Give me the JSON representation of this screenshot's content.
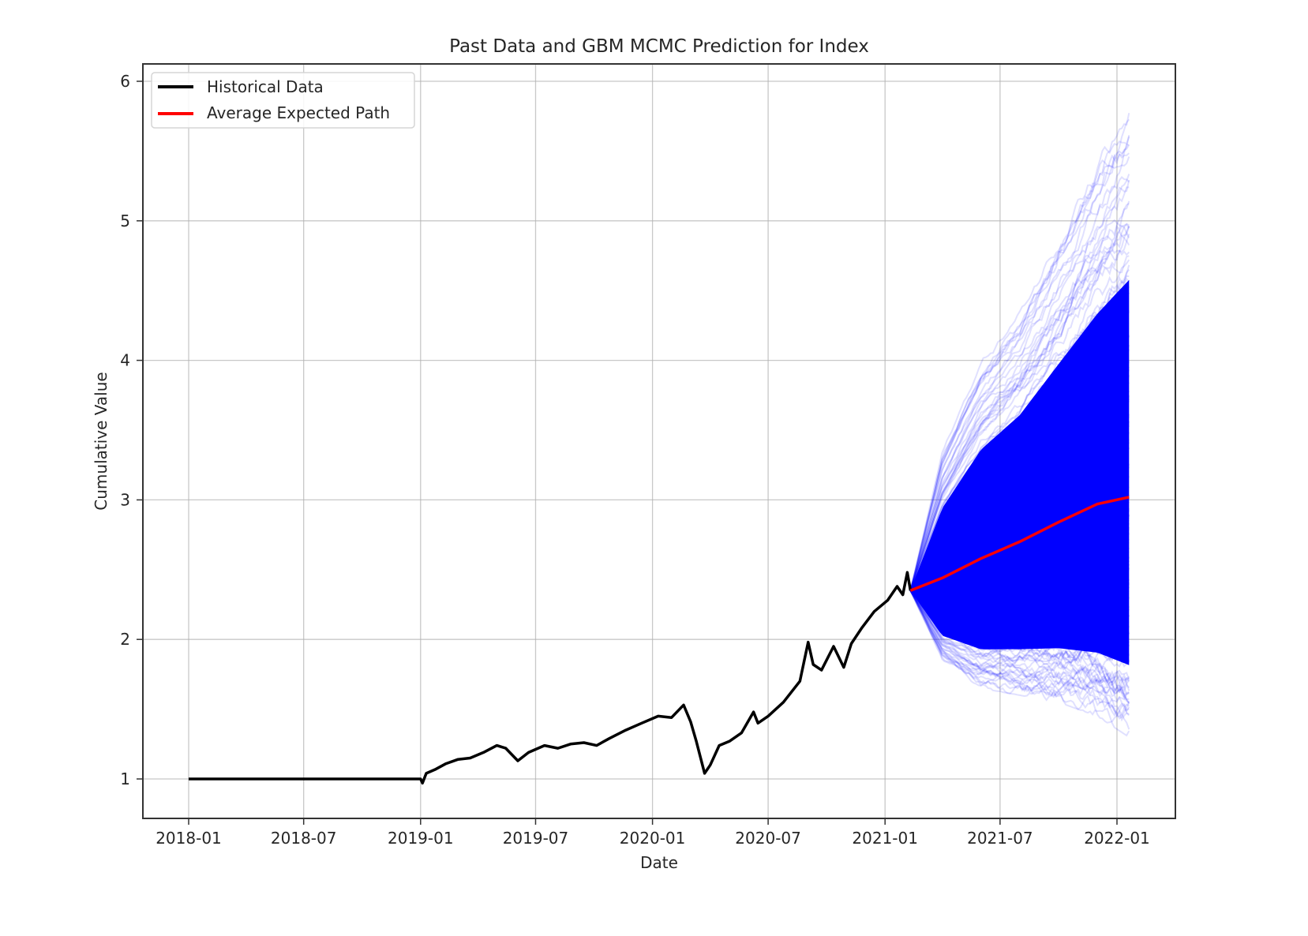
{
  "chart_data": {
    "type": "line",
    "title": "Past Data and GBM MCMC Prediction for Index",
    "xlabel": "Date",
    "ylabel": "Cumulative Value",
    "xlim": [
      "2017-11-05",
      "2022-02-26"
    ],
    "ylim": [
      0.7,
      6.13
    ],
    "grid": true,
    "x_ticks": [
      "2018-01",
      "2018-07",
      "2019-01",
      "2019-07",
      "2020-01",
      "2020-07",
      "2021-01",
      "2021-07",
      "2022-01"
    ],
    "y_ticks": [
      "1",
      "2",
      "3",
      "4",
      "5",
      "6"
    ],
    "legend": {
      "position": "top-left",
      "entries": [
        {
          "label": "Historical Data",
          "color": "#000000"
        },
        {
          "label": "Average Expected Path",
          "color": "#ff0000"
        }
      ]
    },
    "series": [
      {
        "name": "Historical Data",
        "color": "#000000",
        "points": [
          [
            "2018-01-01",
            1.0
          ],
          [
            "2018-07-01",
            1.0
          ],
          [
            "2019-01-01",
            1.0
          ],
          [
            "2019-01-04",
            0.97
          ],
          [
            "2019-01-10",
            1.04
          ],
          [
            "2019-01-25",
            1.07
          ],
          [
            "2019-02-10",
            1.11
          ],
          [
            "2019-03-01",
            1.14
          ],
          [
            "2019-03-20",
            1.15
          ],
          [
            "2019-04-10",
            1.19
          ],
          [
            "2019-05-01",
            1.24
          ],
          [
            "2019-05-15",
            1.22
          ],
          [
            "2019-06-03",
            1.13
          ],
          [
            "2019-06-20",
            1.19
          ],
          [
            "2019-07-15",
            1.24
          ],
          [
            "2019-08-05",
            1.22
          ],
          [
            "2019-08-25",
            1.25
          ],
          [
            "2019-09-15",
            1.26
          ],
          [
            "2019-10-05",
            1.24
          ],
          [
            "2019-10-25",
            1.29
          ],
          [
            "2019-11-20",
            1.35
          ],
          [
            "2019-12-15",
            1.4
          ],
          [
            "2020-01-10",
            1.45
          ],
          [
            "2020-01-31",
            1.44
          ],
          [
            "2020-02-19",
            1.53
          ],
          [
            "2020-03-01",
            1.41
          ],
          [
            "2020-03-10",
            1.27
          ],
          [
            "2020-03-23",
            1.04
          ],
          [
            "2020-04-01",
            1.1
          ],
          [
            "2020-04-15",
            1.24
          ],
          [
            "2020-05-01",
            1.27
          ],
          [
            "2020-05-20",
            1.33
          ],
          [
            "2020-06-08",
            1.48
          ],
          [
            "2020-06-15",
            1.4
          ],
          [
            "2020-07-01",
            1.45
          ],
          [
            "2020-07-25",
            1.55
          ],
          [
            "2020-08-20",
            1.7
          ],
          [
            "2020-09-02",
            1.98
          ],
          [
            "2020-09-10",
            1.82
          ],
          [
            "2020-09-23",
            1.78
          ],
          [
            "2020-10-12",
            1.95
          ],
          [
            "2020-10-28",
            1.8
          ],
          [
            "2020-11-09",
            1.97
          ],
          [
            "2020-11-25",
            2.08
          ],
          [
            "2020-12-15",
            2.2
          ],
          [
            "2021-01-05",
            2.28
          ],
          [
            "2021-01-20",
            2.38
          ],
          [
            "2021-01-29",
            2.32
          ],
          [
            "2021-02-05",
            2.48
          ],
          [
            "2021-02-10",
            2.35
          ]
        ]
      },
      {
        "name": "Average Expected Path",
        "color": "#ff0000",
        "points": [
          [
            "2021-02-10",
            2.35
          ],
          [
            "2021-04-01",
            2.44
          ],
          [
            "2021-06-01",
            2.58
          ],
          [
            "2021-08-01",
            2.7
          ],
          [
            "2021-10-01",
            2.84
          ],
          [
            "2021-12-01",
            2.97
          ],
          [
            "2022-01-20",
            3.02
          ]
        ]
      },
      {
        "name": "Simulated GBM Paths",
        "color": "#0000ff",
        "summary": {
          "start_date": "2021-02-10",
          "end_date": "2022-01-20",
          "start_value": 2.35,
          "upper_envelope": [
            [
              "2021-02-10",
              2.35
            ],
            [
              "2021-04-01",
              3.35
            ],
            [
              "2021-06-01",
              4.0
            ],
            [
              "2021-08-01",
              4.35
            ],
            [
              "2021-10-01",
              4.9
            ],
            [
              "2021-12-01",
              5.45
            ],
            [
              "2022-01-20",
              5.85
            ]
          ],
          "lower_envelope": [
            [
              "2021-02-10",
              2.35
            ],
            [
              "2021-04-01",
              1.85
            ],
            [
              "2021-06-01",
              1.65
            ],
            [
              "2021-08-01",
              1.6
            ],
            [
              "2021-10-01",
              1.55
            ],
            [
              "2021-12-01",
              1.45
            ],
            [
              "2022-01-20",
              1.3
            ]
          ]
        }
      }
    ]
  }
}
